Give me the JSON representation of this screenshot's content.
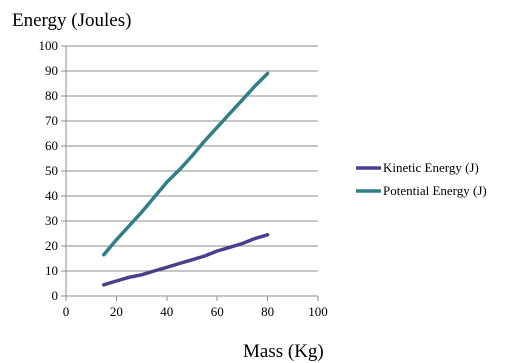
{
  "chart_data": {
    "type": "line",
    "title": "",
    "ylabel": "Energy (Joules)",
    "xlabel": "Mass (Kg)",
    "xlim": [
      0,
      100
    ],
    "ylim": [
      0,
      100
    ],
    "x_ticks": [
      0,
      20,
      40,
      60,
      80,
      100
    ],
    "y_ticks": [
      0,
      10,
      20,
      30,
      40,
      50,
      60,
      70,
      80,
      90,
      100
    ],
    "grid": "horizontal",
    "legend_position": "right",
    "series": [
      {
        "name": "Kinetic Energy (J)",
        "color": "#4b3e8c",
        "x": [
          15,
          20,
          25,
          30,
          35,
          40,
          45,
          50,
          55,
          60,
          65,
          70,
          75,
          80
        ],
        "y": [
          4.5,
          6,
          7.5,
          8.5,
          10,
          11.5,
          13,
          14.5,
          16,
          18,
          19.5,
          21,
          23,
          24.5
        ]
      },
      {
        "name": "Potential Energy (J)",
        "color": "#2e7f86",
        "x": [
          15,
          20,
          25,
          30,
          35,
          40,
          45,
          50,
          55,
          60,
          65,
          70,
          75,
          80
        ],
        "y": [
          16.5,
          22.5,
          28,
          33.5,
          39.5,
          45.5,
          50.5,
          56,
          62,
          67.5,
          73,
          78.5,
          84,
          89
        ]
      }
    ]
  }
}
